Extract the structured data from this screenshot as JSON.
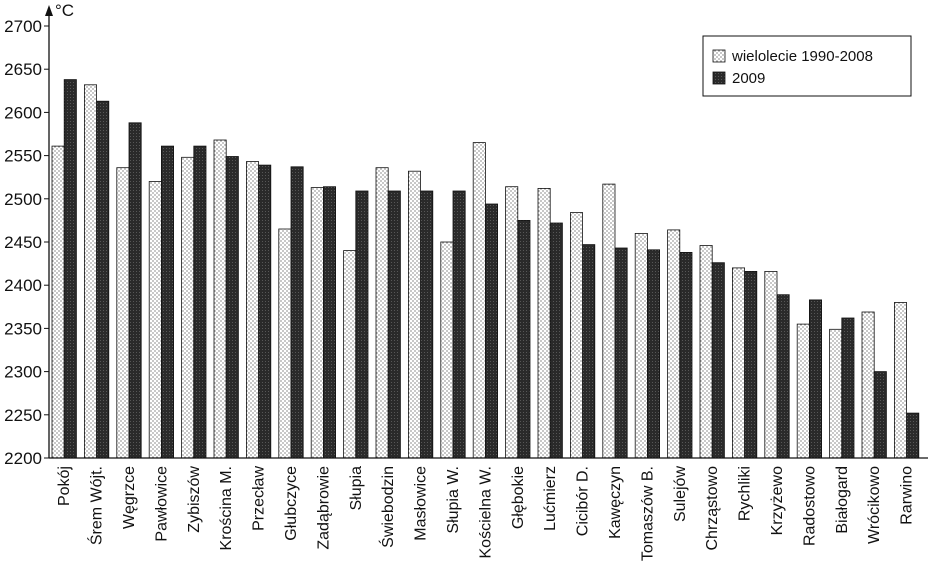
{
  "chart_data": {
    "type": "bar",
    "unit": "°C",
    "ylim": [
      2200,
      2700
    ],
    "yticks": [
      2200,
      2250,
      2300,
      2350,
      2400,
      2450,
      2500,
      2550,
      2600,
      2650,
      2700
    ],
    "legend_position": "top-right",
    "categories": [
      "Pokój",
      "Śrem Wójt.",
      "Węgrzce",
      "Pawłowice",
      "Zybiszów",
      "Krościna M.",
      "Przecław",
      "Głubczyce",
      "Zadąbrowie",
      "Słupia",
      "Świebodzin",
      "Masłowice",
      "Słupia W.",
      "Kościelna W.",
      "Głębokie",
      "Lućmierz",
      "Cicibór D.",
      "Kawęczyn",
      "Tomaszów B.",
      "Sulejów",
      "Chrząstowo",
      "Rychliki",
      "Krzyżewo",
      "Radostowo",
      "Białogard",
      "Wrócikowo",
      "Rarwino"
    ],
    "series": [
      {
        "name": "wielolecie 1990-2008",
        "pattern": "dotted",
        "values": [
          2561,
          2632,
          2536,
          2520,
          2548,
          2568,
          2543,
          2465,
          2513,
          2440,
          2536,
          2532,
          2450,
          2565,
          2514,
          2512,
          2484,
          2517,
          2460,
          2464,
          2446,
          2420,
          2416,
          2355,
          2349,
          2369,
          2380
        ]
      },
      {
        "name": "2009",
        "pattern": "dark",
        "color": "#2b2b2b",
        "values": [
          2638,
          2613,
          2588,
          2561,
          2561,
          2549,
          2539,
          2537,
          2514,
          2509,
          2509,
          2509,
          2509,
          2494,
          2475,
          2472,
          2447,
          2443,
          2441,
          2438,
          2426,
          2416,
          2389,
          2383,
          2362,
          2300,
          2252
        ]
      }
    ]
  }
}
